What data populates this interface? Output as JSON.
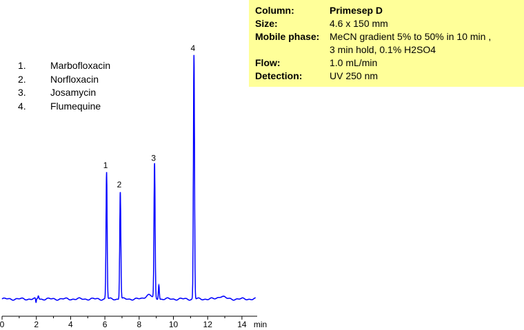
{
  "info": {
    "rows": [
      {
        "label": "Column:",
        "value": "Primesep D",
        "bold": true
      },
      {
        "label": "Size:",
        "value": "4.6 x 150 mm"
      },
      {
        "label": "Mobile phase:",
        "value": "MeCN gradient 5% to 50% in 10 min ,"
      },
      {
        "label": "",
        "value": "3 min hold, 0.1% H2SO4"
      },
      {
        "label": "Flow:",
        "value": "1.0 mL/min"
      },
      {
        "label": "Detection:",
        "value": "UV 250 nm"
      }
    ]
  },
  "legend": [
    {
      "num": "1.",
      "name": "Marbofloxacin"
    },
    {
      "num": "2.",
      "name": "Norfloxacin"
    },
    {
      "num": "3.",
      "name": "Josamycin"
    },
    {
      "num": "4.",
      "name": "Flumequine"
    }
  ],
  "chart_data": {
    "type": "line",
    "xlabel": "min",
    "xlim": [
      0,
      15
    ],
    "x_ticks": [
      0,
      2,
      4,
      6,
      8,
      10,
      12,
      14
    ],
    "line_color": "#0000ff",
    "peaks": [
      {
        "label": "1",
        "x": 6.1,
        "height": 0.52
      },
      {
        "label": "2",
        "x": 6.9,
        "height": 0.44
      },
      {
        "label": "3",
        "x": 8.9,
        "height": 0.55
      },
      {
        "label": "4",
        "x": 11.2,
        "height": 1.0
      }
    ]
  }
}
